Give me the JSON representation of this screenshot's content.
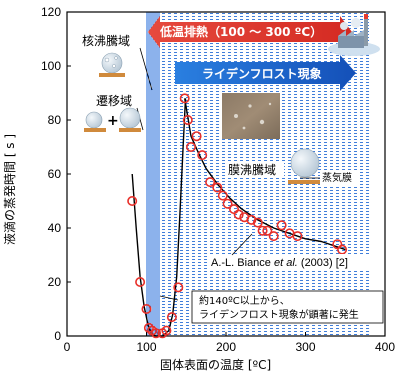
{
  "chart_data": {
    "type": "scatter",
    "title": "",
    "xlabel": "固体表面の温度 [ºC]",
    "ylabel": "液滴の蒸発時間 [ s ]",
    "xlim": [
      0,
      400
    ],
    "ylim": [
      0,
      120
    ],
    "x_ticks": [
      "0",
      "100",
      "200",
      "300",
      "400"
    ],
    "y_ticks": [
      "0",
      "20",
      "40",
      "60",
      "80",
      "100",
      "120"
    ],
    "grid": false,
    "series": [
      {
        "marker": "open-circle",
        "color": "#e8302a",
        "points": [
          [
            82,
            50
          ],
          [
            92,
            20
          ],
          [
            100,
            10
          ],
          [
            103,
            3
          ],
          [
            107,
            2
          ],
          [
            112,
            1
          ],
          [
            120,
            1
          ],
          [
            125,
            2
          ],
          [
            132,
            7
          ],
          [
            140,
            18
          ],
          [
            148,
            88
          ],
          [
            152,
            80
          ],
          [
            156,
            70
          ],
          [
            163,
            74
          ],
          [
            170,
            67
          ],
          [
            180,
            57
          ],
          [
            189,
            55
          ],
          [
            196,
            52
          ],
          [
            202,
            49
          ],
          [
            210,
            47
          ],
          [
            216,
            45
          ],
          [
            223,
            44
          ],
          [
            232,
            43
          ],
          [
            240,
            42
          ],
          [
            246,
            39
          ],
          [
            252,
            39
          ],
          [
            260,
            37
          ],
          [
            270,
            41
          ],
          [
            280,
            38
          ],
          [
            290,
            37
          ],
          [
            340,
            34
          ],
          [
            346,
            32
          ]
        ]
      },
      {
        "name": "A.-L. Biance et al. (2003) [2]",
        "style": "line",
        "color": "#000000",
        "points": [
          [
            148,
            88
          ],
          [
            156,
            74
          ],
          [
            165,
            68
          ],
          [
            175,
            62
          ],
          [
            190,
            56
          ],
          [
            205,
            51
          ],
          [
            220,
            47
          ],
          [
            240,
            43
          ],
          [
            260,
            40
          ],
          [
            280,
            38
          ],
          [
            300,
            36
          ],
          [
            320,
            35
          ],
          [
            350,
            32
          ]
        ]
      },
      {
        "style": "line",
        "color": "#000000",
        "points": [
          [
            82,
            60
          ],
          [
            87,
            40
          ],
          [
            92,
            22
          ],
          [
            97,
            11
          ],
          [
            102,
            4
          ],
          [
            106,
            1
          ],
          [
            112,
            0
          ],
          [
            120,
            0
          ],
          [
            128,
            2
          ],
          [
            133,
            8
          ],
          [
            138,
            22
          ],
          [
            142,
            45
          ],
          [
            146,
            70
          ],
          [
            149,
            88
          ]
        ]
      }
    ],
    "regions": {
      "nucleate": "核沸騰域",
      "transition": "遷移域",
      "film": "膜沸騰域",
      "vapor_film": "蒸気膜"
    },
    "banners": {
      "low_temp_exhaust": "低温排熱（100 ～ 300 ºC）",
      "leidenfrost": "ライデンフロスト現象"
    },
    "citation": {
      "prefix": "A.-L. Biance ",
      "etal": "et al.",
      "suffix": " (2003) [2]"
    },
    "annotation": {
      "line1": "約140ºC以上から、",
      "line2": "ライデンフロスト現象が顕著に発生"
    },
    "colors": {
      "marker": "#e8302a",
      "banner_red": "#e03028",
      "banner_blue": "#1f6fd1",
      "nucleate_lines": "#1a66d9",
      "film_hatch": "#2a6fd6"
    }
  }
}
